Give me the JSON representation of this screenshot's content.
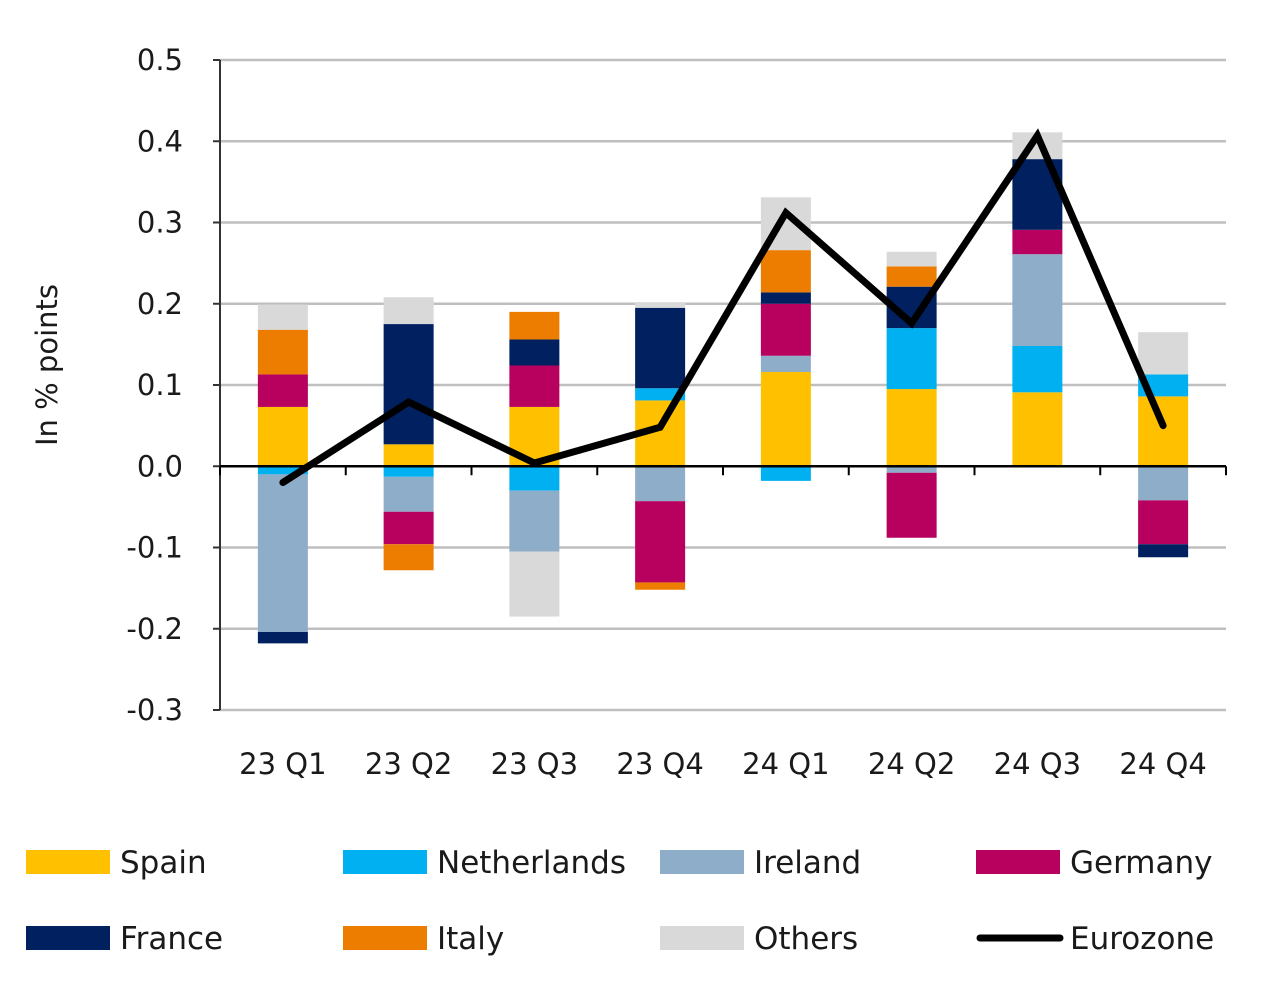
{
  "chart_data": {
    "type": "bar",
    "stacked": true,
    "title": "",
    "xlabel": "",
    "ylabel": "In % points",
    "ylim": [
      -0.3,
      0.5
    ],
    "yticks": [
      -0.3,
      -0.2,
      -0.1,
      0.0,
      0.1,
      0.2,
      0.3,
      0.4,
      0.5
    ],
    "ytick_labels": [
      "-0.3",
      "-0.2",
      "-0.1",
      "0.0",
      "0.1",
      "0.2",
      "0.3",
      "0.4",
      "0.5"
    ],
    "grid": true,
    "legend_position": "bottom",
    "categories": [
      "23 Q1",
      "23 Q2",
      "23 Q3",
      "23 Q4",
      "24 Q1",
      "24 Q2",
      "24 Q3",
      "24 Q4"
    ],
    "series": [
      {
        "name": "Spain",
        "color": "#FFC000",
        "values": [
          0.073,
          0.027,
          0.073,
          0.081,
          0.116,
          0.095,
          0.091,
          0.086
        ]
      },
      {
        "name": "Netherlands",
        "color": "#00B0F0",
        "values": [
          -0.01,
          -0.013,
          -0.03,
          0.015,
          -0.018,
          0.075,
          0.057,
          0.027
        ]
      },
      {
        "name": "Ireland",
        "color": "#8EADC8",
        "values": [
          -0.194,
          -0.043,
          -0.075,
          -0.043,
          0.02,
          -0.008,
          0.113,
          -0.042
        ]
      },
      {
        "name": "Germany",
        "color": "#B8005E",
        "values": [
          0.04,
          -0.04,
          0.051,
          -0.1,
          0.064,
          -0.08,
          0.03,
          -0.054
        ]
      },
      {
        "name": "France",
        "color": "#002060",
        "values": [
          -0.014,
          0.148,
          0.032,
          0.099,
          0.014,
          0.051,
          0.087,
          -0.016
        ]
      },
      {
        "name": "Italy",
        "color": "#ED7D00",
        "values": [
          0.055,
          -0.032,
          0.034,
          -0.009,
          0.052,
          0.025,
          0.0,
          0.0
        ]
      },
      {
        "name": "Others",
        "color": "#D9D9D9",
        "values": [
          0.031,
          0.033,
          -0.08,
          0.007,
          0.065,
          0.018,
          0.033,
          0.052
        ]
      }
    ],
    "line_series": {
      "name": "Eurozone",
      "color": "#000000",
      "values": [
        -0.02,
        0.079,
        0.004,
        0.048,
        0.312,
        0.176,
        0.407,
        0.05
      ]
    }
  }
}
